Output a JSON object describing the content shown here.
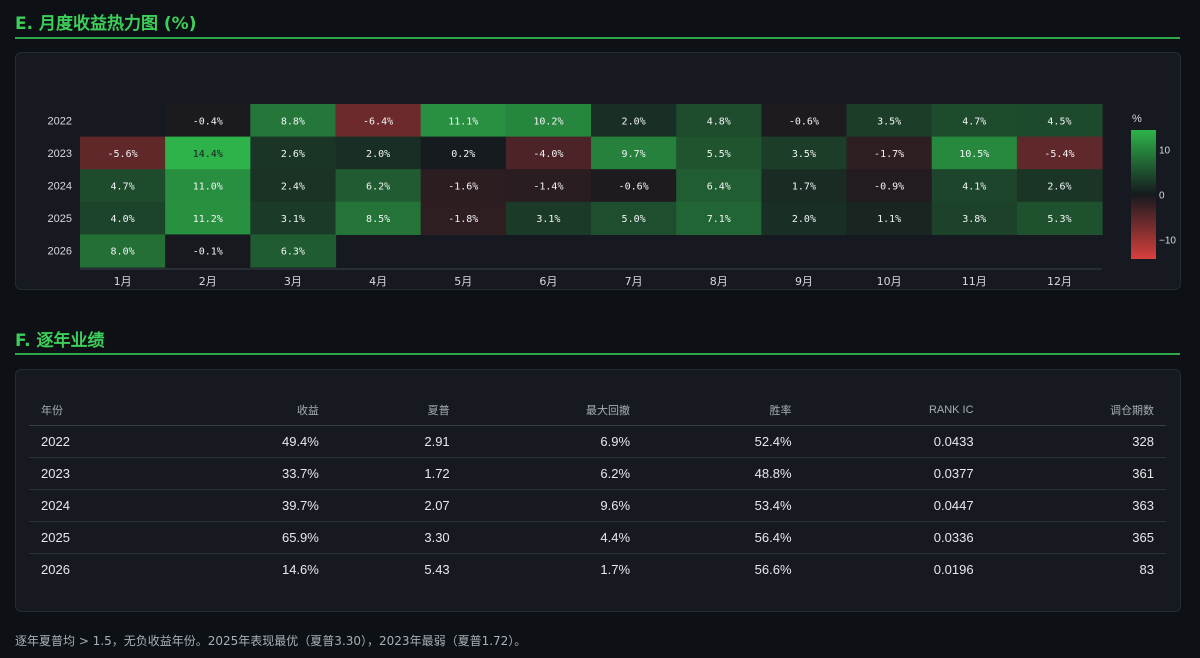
{
  "section_e": {
    "title": "E. 月度收益热力图 (%)"
  },
  "section_f": {
    "title": "F. 逐年业绩"
  },
  "chart_data": {
    "type": "heatmap",
    "title": "E. 月度收益热力图 (%)",
    "x_categories": [
      "1月",
      "2月",
      "3月",
      "4月",
      "5月",
      "6月",
      "7月",
      "8月",
      "9月",
      "10月",
      "11月",
      "12月"
    ],
    "y_categories": [
      "2022",
      "2023",
      "2024",
      "2025",
      "2026"
    ],
    "values": [
      [
        null,
        -0.4,
        8.8,
        -6.4,
        11.1,
        10.2,
        2.0,
        4.8,
        -0.6,
        3.5,
        4.7,
        4.5
      ],
      [
        -5.6,
        14.4,
        2.6,
        2.0,
        0.2,
        -4.0,
        9.7,
        5.5,
        3.5,
        -1.7,
        10.5,
        -5.4
      ],
      [
        4.7,
        11.0,
        2.4,
        6.2,
        -1.6,
        -1.4,
        -0.6,
        6.4,
        1.7,
        -0.9,
        4.1,
        2.6
      ],
      [
        4.0,
        11.2,
        3.1,
        8.5,
        -1.8,
        3.1,
        5.0,
        7.1,
        2.0,
        1.1,
        3.8,
        5.3
      ],
      [
        8.0,
        -0.1,
        6.3,
        null,
        null,
        null,
        null,
        null,
        null,
        null,
        null,
        null
      ]
    ],
    "value_format": "%.1f%",
    "colorbar": {
      "title": "%",
      "ticks": [
        10,
        0,
        -10
      ],
      "tick_labels": [
        "10",
        "0",
        "−10"
      ],
      "range": [
        -14.4,
        14.4
      ]
    },
    "colors": {
      "positive": "#2db34a",
      "zero": "#16191e",
      "negative": "#d8403d"
    }
  },
  "yearly_table": {
    "columns": [
      "年份",
      "收益",
      "夏普",
      "最大回撤",
      "胜率",
      "RANK IC",
      "调仓期数"
    ],
    "rows": [
      [
        "2022",
        "49.4%",
        "2.91",
        "6.9%",
        "52.4%",
        "0.0433",
        "328"
      ],
      [
        "2023",
        "33.7%",
        "1.72",
        "6.2%",
        "48.8%",
        "0.0377",
        "361"
      ],
      [
        "2024",
        "39.7%",
        "2.07",
        "9.6%",
        "53.4%",
        "0.0447",
        "363"
      ],
      [
        "2025",
        "65.9%",
        "3.30",
        "4.4%",
        "56.4%",
        "0.0336",
        "365"
      ],
      [
        "2026",
        "14.6%",
        "5.43",
        "1.7%",
        "56.6%",
        "0.0196",
        "83"
      ]
    ]
  },
  "footnote": "逐年夏普均 > 1.5，无负收益年份。2025年表现最优（夏普3.30），2023年最弱（夏普1.72）。"
}
